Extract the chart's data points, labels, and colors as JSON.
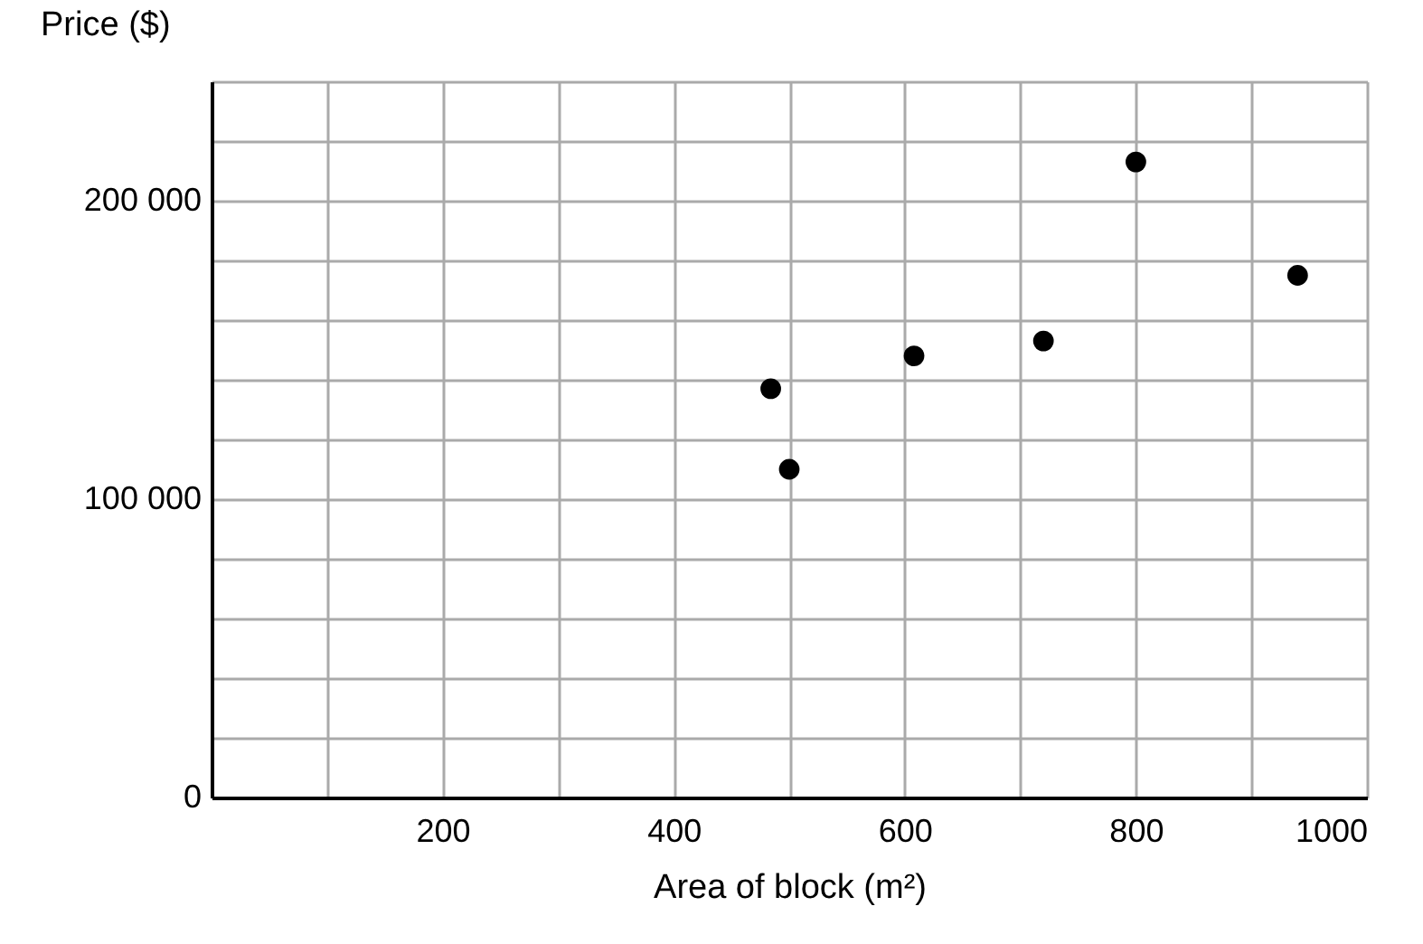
{
  "chart_data": {
    "type": "scatter",
    "xlabel": "Area of block (m²)",
    "ylabel": "Price ($)",
    "x": [
      484,
      500,
      608,
      720,
      800,
      940
    ],
    "series": [
      {
        "color": "#000000",
        "values": [
          137000,
          110000,
          148000,
          153000,
          213000,
          175000
        ]
      }
    ],
    "xlim": [
      0,
      1000
    ],
    "ylim": [
      0,
      240000
    ],
    "xticks": [
      {
        "value": 100,
        "label": null
      },
      200,
      {
        "value": 300,
        "label": null
      },
      400,
      {
        "value": 500,
        "label": null
      },
      600,
      {
        "value": 700,
        "label": null
      },
      800,
      {
        "value": 900,
        "label": null
      },
      1000
    ],
    "yticks": [
      {
        "value": 0,
        "label": "0"
      },
      {
        "value": 20000,
        "label": null
      },
      {
        "value": 40000,
        "label": null
      },
      {
        "value": 60000,
        "label": null
      },
      {
        "value": 80000,
        "label": null
      },
      {
        "value": 100000,
        "label": "100 000"
      },
      {
        "value": 120000,
        "label": null
      },
      {
        "value": 140000,
        "label": null
      },
      {
        "value": 160000,
        "label": null
      },
      {
        "value": 180000,
        "label": null
      },
      {
        "value": 200000,
        "label": "200 000"
      },
      {
        "value": 220000,
        "label": null
      },
      {
        "value": 240000,
        "label": null
      }
    ],
    "grid": true,
    "marker": "circle"
  }
}
